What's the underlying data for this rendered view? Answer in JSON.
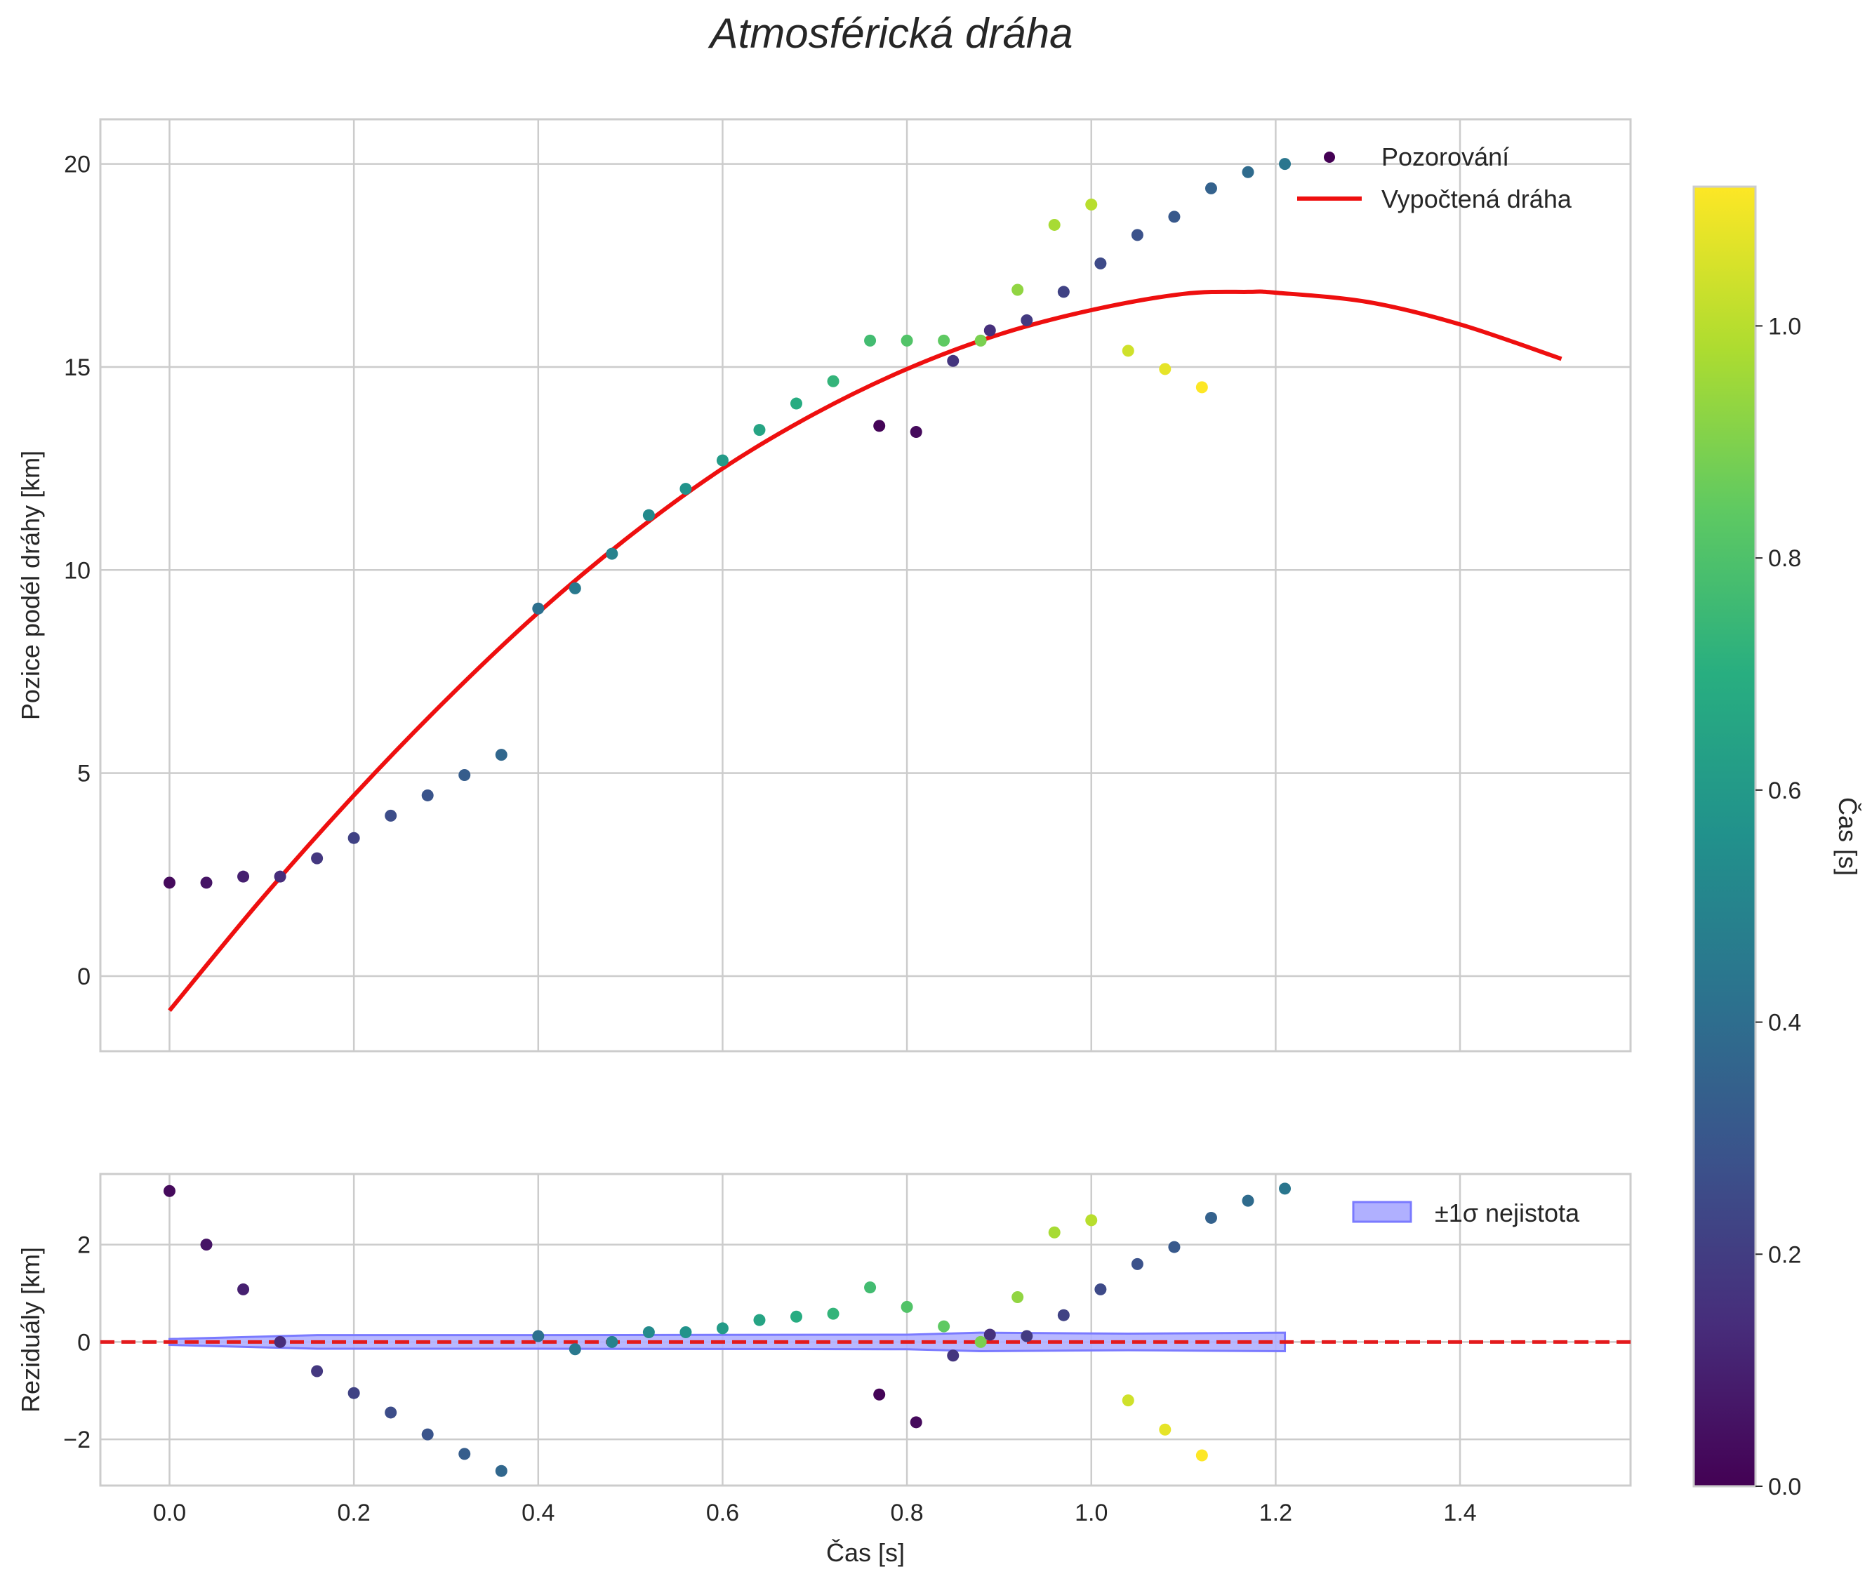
{
  "chart_data": [
    {
      "type": "scatter",
      "panel": "main",
      "title": "Atmosférická dráha",
      "xlabel": "",
      "ylabel": "Pozice podél dráhy [km]",
      "xlim": [
        -0.075,
        1.585
      ],
      "ylim": [
        -1.85,
        21.1
      ],
      "xticks": [
        0.0,
        0.2,
        0.4,
        0.6,
        0.8,
        1.0,
        1.2,
        1.4
      ],
      "yticks": [
        0,
        5,
        10,
        15,
        20
      ],
      "grid": true,
      "legend_position": "top-right",
      "series": [
        {
          "name": "Pozorování",
          "kind": "scatter",
          "points": [
            {
              "x": 0.0,
              "y": 2.3,
              "c": 0.03
            },
            {
              "x": 0.04,
              "y": 2.3,
              "c": 0.06
            },
            {
              "x": 0.08,
              "y": 2.45,
              "c": 0.1
            },
            {
              "x": 0.12,
              "y": 2.45,
              "c": 0.14
            },
            {
              "x": 0.16,
              "y": 2.9,
              "c": 0.18
            },
            {
              "x": 0.2,
              "y": 3.4,
              "c": 0.22
            },
            {
              "x": 0.24,
              "y": 3.95,
              "c": 0.26
            },
            {
              "x": 0.28,
              "y": 4.45,
              "c": 0.29
            },
            {
              "x": 0.32,
              "y": 4.95,
              "c": 0.33
            },
            {
              "x": 0.36,
              "y": 5.45,
              "c": 0.37
            },
            {
              "x": 0.4,
              "y": 9.05,
              "c": 0.41
            },
            {
              "x": 0.44,
              "y": 9.55,
              "c": 0.45
            },
            {
              "x": 0.48,
              "y": 10.4,
              "c": 0.49
            },
            {
              "x": 0.52,
              "y": 11.35,
              "c": 0.53
            },
            {
              "x": 0.56,
              "y": 12.0,
              "c": 0.57
            },
            {
              "x": 0.6,
              "y": 12.7,
              "c": 0.61
            },
            {
              "x": 0.64,
              "y": 13.45,
              "c": 0.65
            },
            {
              "x": 0.68,
              "y": 14.1,
              "c": 0.69
            },
            {
              "x": 0.72,
              "y": 14.65,
              "c": 0.73
            },
            {
              "x": 0.76,
              "y": 15.65,
              "c": 0.77
            },
            {
              "x": 0.77,
              "y": 13.55,
              "c": 0.01
            },
            {
              "x": 0.8,
              "y": 15.65,
              "c": 0.81
            },
            {
              "x": 0.81,
              "y": 13.4,
              "c": 0.03
            },
            {
              "x": 0.84,
              "y": 15.65,
              "c": 0.84
            },
            {
              "x": 0.85,
              "y": 15.15,
              "c": 0.17
            },
            {
              "x": 0.88,
              "y": 15.65,
              "c": 0.89
            },
            {
              "x": 0.89,
              "y": 15.9,
              "c": 0.15
            },
            {
              "x": 0.92,
              "y": 16.9,
              "c": 0.93
            },
            {
              "x": 0.93,
              "y": 16.15,
              "c": 0.19
            },
            {
              "x": 0.96,
              "y": 18.5,
              "c": 0.97
            },
            {
              "x": 0.97,
              "y": 16.85,
              "c": 0.22
            },
            {
              "x": 1.0,
              "y": 19.0,
              "c": 1.0
            },
            {
              "x": 1.01,
              "y": 17.55,
              "c": 0.25
            },
            {
              "x": 1.04,
              "y": 15.4,
              "c": 1.04
            },
            {
              "x": 1.05,
              "y": 18.25,
              "c": 0.28
            },
            {
              "x": 1.08,
              "y": 14.95,
              "c": 1.08
            },
            {
              "x": 1.09,
              "y": 18.7,
              "c": 0.31
            },
            {
              "x": 1.12,
              "y": 14.5,
              "c": 1.12
            },
            {
              "x": 1.13,
              "y": 19.4,
              "c": 0.35
            },
            {
              "x": 1.17,
              "y": 19.8,
              "c": 0.39
            },
            {
              "x": 1.21,
              "y": 20.0,
              "c": 0.44
            }
          ]
        },
        {
          "name": "Vypočtená dráha",
          "kind": "line",
          "color": "#ee0f0f",
          "x": [
            0.0,
            0.1,
            0.2,
            0.3,
            0.4,
            0.5,
            0.6,
            0.7,
            0.8,
            0.9,
            1.0,
            1.1,
            1.17,
            1.2,
            1.3,
            1.4,
            1.51
          ],
          "y": [
            -0.85,
            1.9,
            4.45,
            6.8,
            8.95,
            10.85,
            12.5,
            13.85,
            14.95,
            15.8,
            16.4,
            16.8,
            16.85,
            16.83,
            16.6,
            16.05,
            15.2
          ]
        }
      ]
    },
    {
      "type": "scatter",
      "panel": "residuals",
      "xlabel": "Čas [s]",
      "ylabel": "Reziduály [km]",
      "xlim": [
        -0.075,
        1.585
      ],
      "ylim": [
        -2.95,
        3.45
      ],
      "xticks": [
        0.0,
        0.2,
        0.4,
        0.6,
        0.8,
        1.0,
        1.2,
        1.4
      ],
      "xtick_labels": [
        "0.0",
        "0.2",
        "0.4",
        "0.6",
        "0.8",
        "1.0",
        "1.2",
        "1.4"
      ],
      "yticks": [
        -2,
        0,
        2
      ],
      "ytick_labels": [
        "−2",
        "0",
        "2"
      ],
      "grid": true,
      "legend_position": "top-right",
      "zero_line": {
        "y": 0,
        "color": "#e31a1c",
        "style": "dashed"
      },
      "band": {
        "name": "±1σ nejistota",
        "color": "#7a7aff",
        "x": [
          0.0,
          0.12,
          0.16,
          0.4,
          0.8,
          0.88,
          1.04,
          1.12,
          1.21
        ],
        "sigma": [
          0.06,
          0.12,
          0.14,
          0.14,
          0.15,
          0.19,
          0.17,
          0.18,
          0.19
        ]
      },
      "series": [
        {
          "name": "Reziduály",
          "kind": "scatter",
          "points": [
            {
              "x": 0.0,
              "y": 3.1,
              "c": 0.03
            },
            {
              "x": 0.04,
              "y": 2.0,
              "c": 0.06
            },
            {
              "x": 0.08,
              "y": 1.08,
              "c": 0.1
            },
            {
              "x": 0.12,
              "y": 0.0,
              "c": 0.14
            },
            {
              "x": 0.16,
              "y": -0.6,
              "c": 0.18
            },
            {
              "x": 0.2,
              "y": -1.05,
              "c": 0.22
            },
            {
              "x": 0.24,
              "y": -1.45,
              "c": 0.26
            },
            {
              "x": 0.28,
              "y": -1.9,
              "c": 0.29
            },
            {
              "x": 0.32,
              "y": -2.3,
              "c": 0.33
            },
            {
              "x": 0.36,
              "y": -2.65,
              "c": 0.37
            },
            {
              "x": 0.4,
              "y": 0.12,
              "c": 0.41
            },
            {
              "x": 0.44,
              "y": -0.15,
              "c": 0.45
            },
            {
              "x": 0.48,
              "y": 0.0,
              "c": 0.49
            },
            {
              "x": 0.52,
              "y": 0.2,
              "c": 0.53
            },
            {
              "x": 0.56,
              "y": 0.2,
              "c": 0.57
            },
            {
              "x": 0.6,
              "y": 0.28,
              "c": 0.61
            },
            {
              "x": 0.64,
              "y": 0.45,
              "c": 0.65
            },
            {
              "x": 0.68,
              "y": 0.52,
              "c": 0.69
            },
            {
              "x": 0.72,
              "y": 0.58,
              "c": 0.73
            },
            {
              "x": 0.76,
              "y": 1.12,
              "c": 0.77
            },
            {
              "x": 0.77,
              "y": -1.08,
              "c": 0.01
            },
            {
              "x": 0.8,
              "y": 0.72,
              "c": 0.81
            },
            {
              "x": 0.81,
              "y": -1.65,
              "c": 0.03
            },
            {
              "x": 0.84,
              "y": 0.32,
              "c": 0.84
            },
            {
              "x": 0.85,
              "y": -0.28,
              "c": 0.17
            },
            {
              "x": 0.88,
              "y": 0.0,
              "c": 0.89
            },
            {
              "x": 0.89,
              "y": 0.15,
              "c": 0.15
            },
            {
              "x": 0.92,
              "y": 0.92,
              "c": 0.93
            },
            {
              "x": 0.93,
              "y": 0.12,
              "c": 0.19
            },
            {
              "x": 0.96,
              "y": 2.25,
              "c": 0.97
            },
            {
              "x": 0.97,
              "y": 0.55,
              "c": 0.22
            },
            {
              "x": 1.0,
              "y": 2.5,
              "c": 1.0
            },
            {
              "x": 1.01,
              "y": 1.08,
              "c": 0.25
            },
            {
              "x": 1.04,
              "y": -1.2,
              "c": 1.04
            },
            {
              "x": 1.05,
              "y": 1.6,
              "c": 0.28
            },
            {
              "x": 1.08,
              "y": -1.8,
              "c": 1.08
            },
            {
              "x": 1.09,
              "y": 1.95,
              "c": 0.31
            },
            {
              "x": 1.12,
              "y": -2.33,
              "c": 1.12
            },
            {
              "x": 1.13,
              "y": 2.55,
              "c": 0.35
            },
            {
              "x": 1.17,
              "y": 2.9,
              "c": 0.39
            },
            {
              "x": 1.21,
              "y": 3.15,
              "c": 0.44
            }
          ]
        }
      ]
    }
  ],
  "colorbar": {
    "label": "Čas [s]",
    "colormap": "viridis",
    "range": [
      0.0,
      1.12
    ],
    "ticks": [
      0.0,
      0.2,
      0.4,
      0.6,
      0.8,
      1.0
    ],
    "tick_labels": [
      "0.0",
      "0.2",
      "0.4",
      "0.6",
      "0.8",
      "1.0"
    ]
  },
  "colors": {
    "fit_line": "#ee0f0f",
    "zero_line": "#e31a1c",
    "band_fill": "#b0b0ff",
    "band_edge": "#7a7aff",
    "grid": "#cccccc",
    "frame": "#cccccc"
  }
}
